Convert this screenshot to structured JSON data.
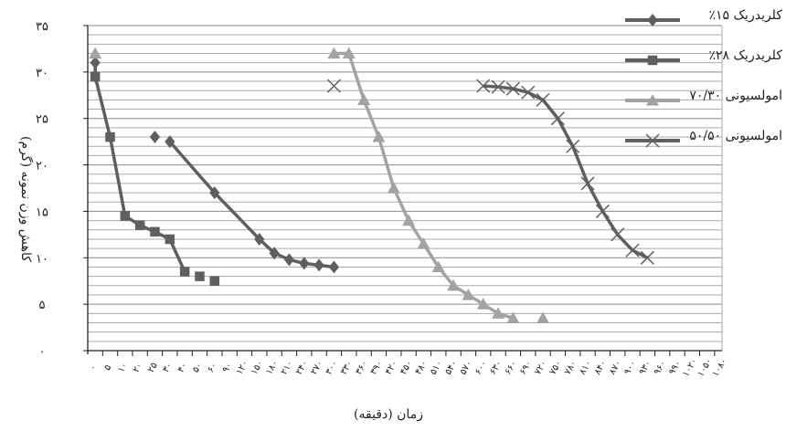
{
  "chart_data": {
    "type": "line",
    "xlabel": "زمان (دقیقه)",
    "ylabel": "کاهش وزن نمونه (گرم)",
    "ylim": [
      0,
      35
    ],
    "yticks": [
      "۰",
      "۵",
      "۱۰",
      "۱۵",
      "۲۰",
      "۲۵",
      "۳۰",
      "۳۵"
    ],
    "xticks": [
      "۰",
      "۵",
      "۱۰",
      "۲۰",
      "۲۵",
      "۳۰",
      "۴۰",
      "۵۰",
      "۶۰",
      "۹۰",
      "۱۲۰",
      "۱۵۰",
      "۱۸۰",
      "۲۱۰",
      "۲۴۰",
      "۲۷۰",
      "۳۰۰",
      "۳۳۰",
      "۳۶۰",
      "۳۹۰",
      "۴۲۰",
      "۴۵۰",
      "۴۸۰",
      "۵۱۰",
      "۵۴۰",
      "۵۷۰",
      "۶۰۰",
      "۶۳۰",
      "۶۶۰",
      "۶۹۰",
      "۷۲۰",
      "۷۵۰",
      "۷۸۰",
      "۸۱۰",
      "۸۴۰",
      "۸۷۰",
      "۹۰۰",
      "۹۳۰",
      "۹۶۰",
      "۹۹۰",
      "۱۰۲۰",
      "۱۰۵۰",
      "۱۰۸۰"
    ],
    "grid": true,
    "legend_position": "top-right",
    "series": [
      {
        "name": "کلریدریک ۱۵٪",
        "marker": "diamond",
        "color": "#5f5f5f",
        "points": [
          [
            0,
            31
          ],
          [
            0,
            29.5
          ],
          [
            4,
            23
          ],
          [
            5,
            22.5
          ],
          [
            8,
            17
          ],
          [
            11,
            12
          ],
          [
            12,
            10.5
          ],
          [
            13,
            9.8
          ],
          [
            14,
            9.4
          ],
          [
            15,
            9.2
          ],
          [
            16,
            9.0
          ]
        ],
        "segments": [
          [
            0,
            1
          ],
          [
            3,
            10
          ]
        ]
      },
      {
        "name": "کلریدریک ۲۸٪",
        "marker": "square",
        "color": "#5f5f5f",
        "points": [
          [
            0,
            29.5
          ],
          [
            1,
            23
          ],
          [
            2,
            14.5
          ],
          [
            3,
            13.5
          ],
          [
            4,
            12.8
          ],
          [
            5,
            12
          ],
          [
            6,
            8.5
          ],
          [
            7,
            8
          ],
          [
            8,
            7.5
          ]
        ],
        "segments": [
          [
            0,
            6
          ]
        ]
      },
      {
        "name": "امولسیونی ۷۰/۳۰",
        "marker": "triangle",
        "color": "#a3a3a3",
        "points": [
          [
            0,
            32
          ],
          [
            16,
            32
          ],
          [
            17,
            32
          ],
          [
            18,
            27
          ],
          [
            19,
            23
          ],
          [
            20,
            17.5
          ],
          [
            21,
            14
          ],
          [
            22,
            11.5
          ],
          [
            23,
            9
          ],
          [
            24,
            7
          ],
          [
            25,
            6
          ],
          [
            26,
            5
          ],
          [
            27,
            4
          ],
          [
            28,
            3.5
          ],
          [
            30,
            3.5
          ]
        ],
        "segments": [
          [
            1,
            13
          ]
        ]
      },
      {
        "name": "امولسیونی ۵۰/۵۰",
        "marker": "x",
        "color": "#5f5f5f",
        "points": [
          [
            16,
            28.5
          ],
          [
            26,
            28.5
          ],
          [
            27,
            28.4
          ],
          [
            28,
            28.2
          ],
          [
            29,
            27.8
          ],
          [
            30,
            27
          ],
          [
            31,
            25
          ],
          [
            32,
            22
          ],
          [
            33,
            18
          ],
          [
            34,
            15
          ],
          [
            35,
            12.5
          ],
          [
            36,
            10.8
          ],
          [
            37,
            10
          ]
        ],
        "segments": [
          [
            1,
            12
          ]
        ]
      }
    ]
  }
}
